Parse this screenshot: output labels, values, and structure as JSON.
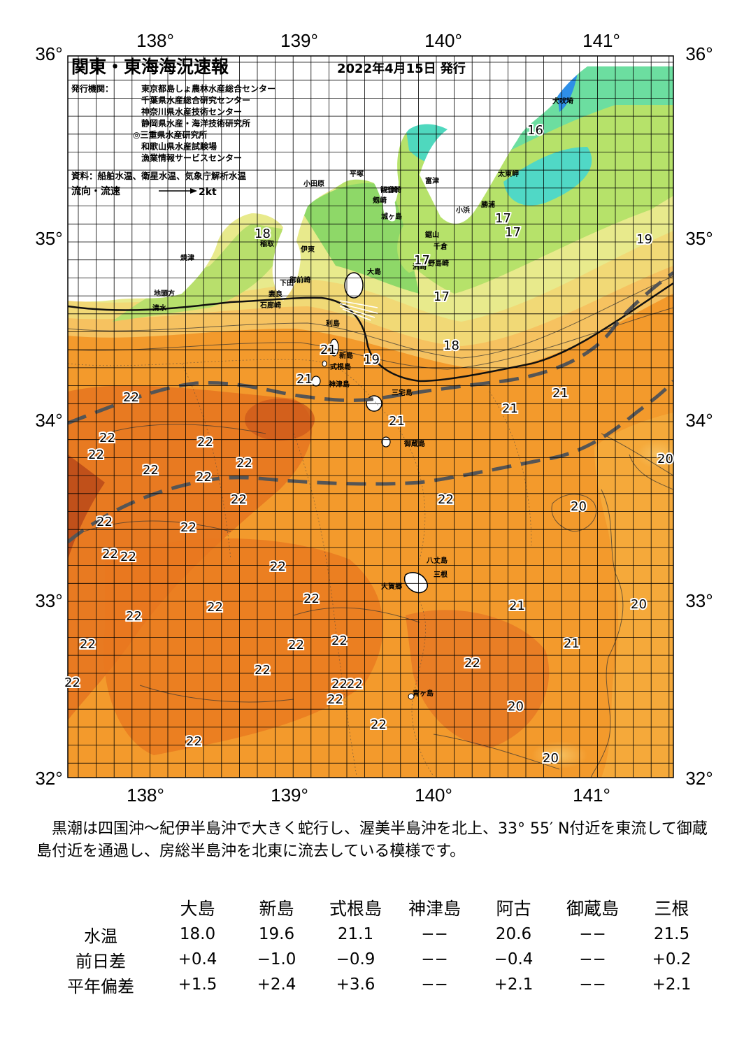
{
  "header": {
    "title": "関東・東海海況速報",
    "date": "2022年4月15日 発行",
    "issuer_label": "発行機関：",
    "issuers": [
      "東京都島しょ農林水産総合センター",
      "千葉県水産総合研究センター",
      "神奈川県水産技術センター",
      "静岡県水産・海洋技術研究所",
      "◎三重県水産研究所",
      "和歌山県水産試験場",
      "漁業情報サービスセンター"
    ],
    "source": "資料：船舶水温、衛星水温、気象庁解析水温",
    "flow_label": "流向・流速",
    "flow_unit": "2kt"
  },
  "map": {
    "lon_ticks": [
      "138°",
      "139°",
      "140°",
      "141°"
    ],
    "lat_ticks": [
      "36°",
      "35°",
      "34°",
      "33°",
      "32°"
    ],
    "colors": {
      "kuroshio": "#f39a2c",
      "warm": "#e8741a",
      "core": "#d9621c",
      "coastal": "#a6dc62",
      "cold": "#4ad6c4",
      "land": "#ffffff",
      "front": "#555555"
    },
    "place_names": [
      "犬吠埼",
      "太東岬",
      "勝浦",
      "小浜",
      "鋸山",
      "千倉",
      "野島崎",
      "洲崎",
      "富津",
      "観音崎",
      "剱崎",
      "城ヶ島",
      "三崎",
      "平塚",
      "小田原",
      "大島",
      "利島",
      "新島",
      "式根島",
      "神津島",
      "三宅島",
      "御蔵島",
      "八丈島",
      "三根",
      "大賀郷",
      "青ヶ島",
      "伊東",
      "稲取",
      "下田",
      "石廊崎",
      "妻良",
      "御前崎",
      "地頭方",
      "焼津",
      "清水"
    ],
    "temp_labels": [
      "16",
      "17",
      "17",
      "17",
      "17",
      "18",
      "18",
      "19",
      "19",
      "20",
      "21",
      "21",
      "21",
      "21",
      "21",
      "21",
      "21",
      "20",
      "20",
      "20",
      "20",
      "22",
      "22",
      "22",
      "22",
      "22",
      "22",
      "22",
      "22",
      "22",
      "22",
      "22",
      "22",
      "22",
      "22",
      "22",
      "22",
      "22",
      "22",
      "22",
      "22",
      "22",
      "22",
      "22",
      "22",
      "22",
      "22",
      "22",
      "22"
    ]
  },
  "summary": "黒潮は四国沖～紀伊半島沖で大きく蛇行し、渥美半島沖を北上、33° 55′ N付近を東流して御蔵島付近を通過し、房総半島沖を北東に流去している模様です。",
  "table": {
    "headers": [
      "大島",
      "新島",
      "式根島",
      "神津島",
      "阿古",
      "御蔵島",
      "三根"
    ],
    "rows": [
      {
        "label": "水温",
        "values": [
          "18.0",
          "19.6",
          "21.1",
          "−−",
          "20.6",
          "−−",
          "21.5"
        ]
      },
      {
        "label": "前日差",
        "values": [
          "+0.4",
          "−1.0",
          "−0.9",
          "−−",
          "−0.4",
          "−−",
          "+0.2"
        ]
      },
      {
        "label": "平年偏差",
        "values": [
          "+1.5",
          "+2.4",
          "+3.6",
          "−−",
          "+2.1",
          "−−",
          "+2.1"
        ]
      }
    ]
  }
}
